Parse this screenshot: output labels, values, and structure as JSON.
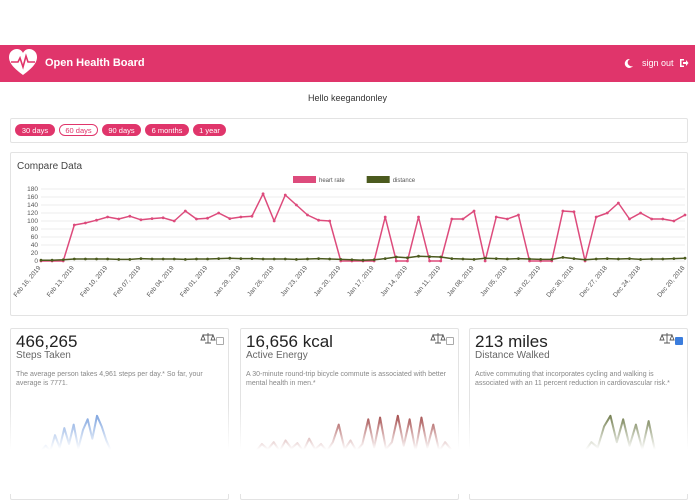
{
  "header": {
    "title": "Open Health Board",
    "sign_out": "sign out"
  },
  "greeting": "Hello keegandonley",
  "range_buttons": [
    {
      "label": "30 days",
      "active": true
    },
    {
      "label": "60 days",
      "active": false
    },
    {
      "label": "90 days",
      "active": true
    },
    {
      "label": "6 months",
      "active": true
    },
    {
      "label": "1 year",
      "active": true
    }
  ],
  "chart_data": {
    "type": "line",
    "title": "Compare Data",
    "categories": [
      "Feb 16, 2019",
      null,
      null,
      "Feb 13, 2019",
      null,
      null,
      "Feb 10, 2019",
      null,
      null,
      "Feb 07, 2019",
      null,
      null,
      "Feb 04, 2019",
      null,
      null,
      "Feb 01, 2019",
      null,
      null,
      "Jan 29, 2019",
      null,
      null,
      "Jan 26, 2019",
      null,
      null,
      "Jan 23, 2019",
      null,
      null,
      "Jan 20, 2019",
      null,
      null,
      "Jan 17, 2019",
      null,
      null,
      "Jan 14, 2019",
      null,
      null,
      "Jan 11, 2019",
      null,
      null,
      "Jan 08, 2019",
      null,
      null,
      "Jan 05, 2019",
      null,
      null,
      "Jan 02, 2019",
      null,
      null,
      "Dec 30, 2018",
      null,
      null,
      "Dec 27, 2018",
      null,
      null,
      "Dec 24, 2018",
      null,
      null,
      null,
      "Dec 20, 2018"
    ],
    "series": [
      {
        "name": "heart rate",
        "color": "#dd4b7c",
        "values": [
          0,
          0,
          0,
          90,
          95,
          102,
          110,
          105,
          112,
          103,
          106,
          108,
          100,
          125,
          105,
          107,
          120,
          106,
          110,
          112,
          168,
          100,
          165,
          140,
          115,
          102,
          100,
          0,
          0,
          0,
          0,
          110,
          0,
          0,
          110,
          0,
          0,
          105,
          105,
          125,
          0,
          110,
          105,
          115,
          0,
          0,
          0,
          125,
          123,
          0,
          110,
          120,
          145,
          105,
          120,
          105,
          105,
          100,
          115
        ]
      },
      {
        "name": "distance",
        "color": "#4b5a1e",
        "values": [
          2,
          2,
          3,
          5,
          5,
          5,
          5,
          4,
          4,
          6,
          5,
          5,
          5,
          4,
          5,
          5,
          6,
          7,
          6,
          6,
          5,
          5,
          5,
          4,
          5,
          6,
          5,
          4,
          3,
          2,
          3,
          6,
          10,
          8,
          12,
          11,
          10,
          6,
          5,
          4,
          7,
          6,
          5,
          6,
          5,
          4,
          4,
          9,
          6,
          3,
          5,
          6,
          5,
          6,
          4,
          5,
          5,
          6,
          7
        ]
      }
    ],
    "ylim": [
      0,
      180
    ],
    "yticks": [
      0,
      20,
      40,
      60,
      80,
      100,
      120,
      140,
      160,
      180
    ],
    "grid": true,
    "legend": "top"
  },
  "cards": [
    {
      "value": "466,265",
      "label": "Steps Taken",
      "checked": false,
      "description": "The average person takes 4,961 steps per day.* So far, your average is 7771.",
      "spark": {
        "color": "#5b8bd6",
        "values": [
          0,
          6,
          0,
          18,
          4,
          26,
          8,
          30,
          3,
          24,
          36,
          14,
          40,
          28,
          12,
          0
        ],
        "ylim": [
          0,
          50
        ]
      }
    },
    {
      "value": "16,656 kcal",
      "label": "Active Energy",
      "checked": false,
      "description": "A 30-minute round-trip bicycle commute is associated with better mental health in men.*",
      "spark": {
        "color": "#8b1a1a",
        "values": [
          0,
          8,
          2,
          10,
          0,
          12,
          3,
          9,
          0,
          14,
          2,
          8,
          0,
          10,
          30,
          2,
          12,
          0,
          8,
          36,
          4,
          38,
          2,
          10,
          40,
          6,
          36,
          0,
          38,
          4,
          30,
          0,
          10,
          2
        ],
        "ylim": [
          0,
          50
        ]
      }
    },
    {
      "value": "213 miles",
      "label": "Distance Walked",
      "checked": true,
      "description": "Active commuting that incorporates cycling and walking is associated with an 11 percent reduction in cardiovascular risk.*",
      "spark": {
        "color": "#4b5a1e",
        "values": [
          0,
          10,
          4,
          28,
          40,
          10,
          36,
          6,
          30,
          2,
          34,
          0
        ],
        "ylim": [
          0,
          50
        ]
      }
    }
  ]
}
